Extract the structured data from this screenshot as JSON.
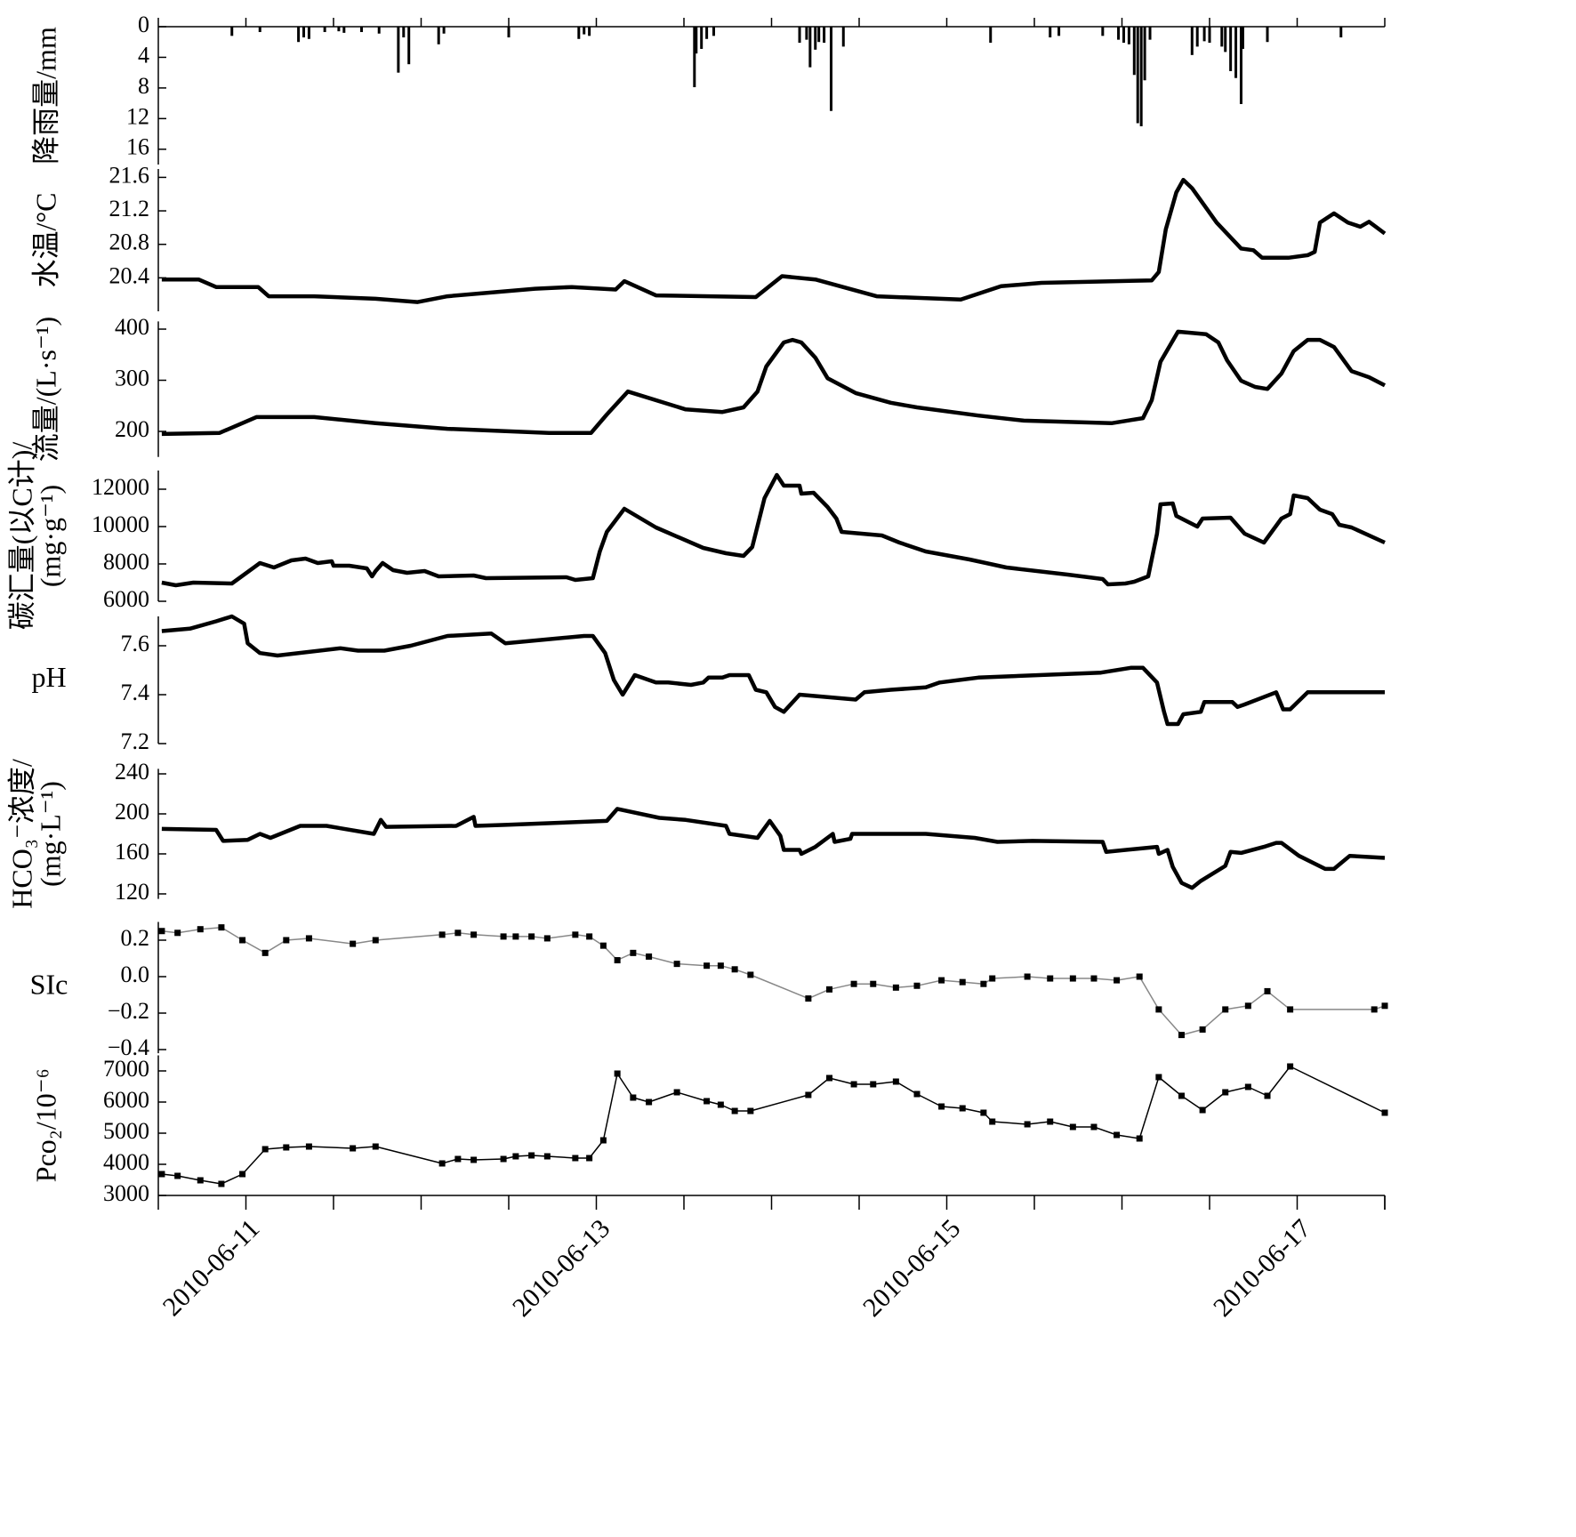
{
  "chart_data": [
    {
      "type": "bar",
      "ylabel": [
        "降雨量/mm"
      ],
      "color": "#000000",
      "y_inverted": true,
      "xlim": [
        10.5,
        17.5
      ],
      "ylim": [
        0,
        18
      ],
      "yticks": [
        0,
        4,
        8,
        12,
        16
      ],
      "x": [
        10.92,
        11.08,
        11.3,
        11.33,
        11.36,
        11.45,
        11.53,
        11.56,
        11.66,
        11.76,
        11.87,
        11.9,
        11.93,
        12.1,
        12.13,
        12.5,
        12.9,
        12.93,
        12.96,
        13.56,
        13.57,
        13.6,
        13.63,
        13.67,
        14.16,
        14.2,
        14.22,
        14.25,
        14.27,
        14.3,
        14.34,
        14.41,
        15.25,
        15.59,
        15.64,
        15.89,
        15.98,
        16.01,
        16.04,
        16.07,
        16.09,
        16.11,
        16.13,
        16.16,
        16.4,
        16.43,
        16.47,
        16.5,
        16.57,
        16.59,
        16.62,
        16.65,
        16.68,
        16.69,
        16.83,
        17.25
      ],
      "values": [
        1.2,
        0.7,
        2.0,
        1.4,
        1.6,
        0.7,
        0.6,
        0.8,
        0.7,
        0.9,
        6.0,
        1.4,
        4.9,
        2.3,
        0.9,
        1.4,
        1.6,
        1.0,
        1.2,
        7.9,
        3.5,
        2.9,
        1.6,
        1.2,
        2.1,
        1.7,
        5.3,
        3.0,
        2.0,
        2.1,
        11.0,
        2.6,
        2.1,
        1.4,
        1.2,
        1.2,
        1.7,
        2.1,
        2.3,
        6.3,
        12.6,
        13.0,
        7.0,
        1.7,
        3.7,
        2.6,
        1.9,
        2.1,
        2.6,
        3.3,
        5.8,
        6.7,
        10.1,
        2.9,
        2.0,
        1.4
      ]
    },
    {
      "type": "line",
      "ylabel": [
        "水温/°C"
      ],
      "color": "#000000",
      "xlim": [
        10.5,
        17.5
      ],
      "ylim": [
        20.0,
        21.7
      ],
      "yticks": [
        20.4,
        20.8,
        21.2,
        21.6
      ],
      "x": [
        10.52,
        10.73,
        10.83,
        11.07,
        11.13,
        11.39,
        11.74,
        11.98,
        12.15,
        12.65,
        12.86,
        13.11,
        13.16,
        13.34,
        13.91,
        14.06,
        14.25,
        14.6,
        15.08,
        15.31,
        15.54,
        16.17,
        16.21,
        16.25,
        16.31,
        16.35,
        16.4,
        16.54,
        16.68,
        16.75,
        16.8,
        16.95,
        17.06,
        17.1,
        17.13,
        17.21,
        17.29,
        17.36,
        17.41,
        17.5
      ],
      "values": [
        20.38,
        20.38,
        20.29,
        20.29,
        20.18,
        20.18,
        20.15,
        20.11,
        20.18,
        20.27,
        20.29,
        20.26,
        20.36,
        20.19,
        20.17,
        20.42,
        20.38,
        20.18,
        20.14,
        20.3,
        20.34,
        20.37,
        20.47,
        20.98,
        21.42,
        21.57,
        21.47,
        21.06,
        20.75,
        20.73,
        20.64,
        20.64,
        20.67,
        20.71,
        21.06,
        21.17,
        21.06,
        21.01,
        21.07,
        20.93
      ]
    },
    {
      "type": "line",
      "ylabel": [
        "流量/(L·s⁻¹)"
      ],
      "color": "#000000",
      "xlim": [
        10.5,
        17.5
      ],
      "ylim": [
        150,
        415
      ],
      "yticks": [
        200,
        300,
        400
      ],
      "x": [
        10.52,
        10.85,
        11.06,
        11.39,
        11.74,
        12.15,
        12.73,
        12.97,
        13.06,
        13.18,
        13.51,
        13.72,
        13.84,
        13.92,
        13.97,
        14.07,
        14.12,
        14.17,
        14.25,
        14.32,
        14.48,
        14.68,
        14.83,
        15.18,
        15.44,
        15.94,
        16.12,
        16.17,
        16.22,
        16.32,
        16.48,
        16.55,
        16.6,
        16.68,
        16.76,
        16.83,
        16.91,
        16.98,
        17.06,
        17.13,
        17.21,
        17.31,
        17.41,
        17.5
      ],
      "values": [
        195,
        197,
        228,
        228,
        216,
        205,
        197,
        197,
        233,
        278,
        243,
        238,
        247,
        278,
        327,
        374,
        379,
        374,
        344,
        304,
        275,
        256,
        247,
        231,
        221,
        216,
        226,
        261,
        336,
        395,
        390,
        374,
        339,
        299,
        287,
        283,
        313,
        357,
        379,
        379,
        365,
        318,
        306,
        290
      ]
    },
    {
      "type": "line",
      "ylabel": [
        "碳汇量(以C计)/",
        "(mg·g⁻¹)"
      ],
      "color": "#000000",
      "xlim": [
        10.5,
        17.5
      ],
      "ylim": [
        6000,
        13000
      ],
      "yticks": [
        6000,
        8000,
        10000,
        12000
      ],
      "x": [
        10.52,
        10.6,
        10.7,
        10.92,
        11.08,
        11.16,
        11.26,
        11.34,
        11.41,
        11.49,
        11.5,
        11.59,
        11.69,
        11.72,
        11.74,
        11.78,
        11.84,
        11.92,
        12.02,
        12.1,
        12.3,
        12.37,
        12.83,
        12.88,
        12.98,
        13.02,
        13.06,
        13.16,
        13.34,
        13.61,
        13.74,
        13.84,
        13.89,
        13.96,
        14.03,
        14.07,
        14.16,
        14.17,
        14.24,
        14.32,
        14.37,
        14.4,
        14.63,
        14.73,
        14.88,
        15.13,
        15.34,
        15.69,
        15.89,
        15.92,
        16.02,
        16.07,
        16.15,
        16.2,
        16.22,
        16.29,
        16.31,
        16.43,
        16.46,
        16.62,
        16.7,
        16.81,
        16.91,
        16.96,
        16.98,
        17.06,
        17.13,
        17.2,
        17.24,
        17.31,
        17.5
      ],
      "values": [
        7000,
        6857,
        7000,
        6952,
        8048,
        7810,
        8190,
        8286,
        8048,
        8143,
        7905,
        7905,
        7762,
        7333,
        7619,
        8048,
        7667,
        7524,
        7619,
        7333,
        7381,
        7238,
        7286,
        7143,
        7238,
        8667,
        9714,
        10952,
        9952,
        8857,
        8571,
        8429,
        8905,
        11524,
        12762,
        12190,
        12190,
        11762,
        11810,
        11048,
        10429,
        9714,
        9524,
        9143,
        8667,
        8238,
        7810,
        7429,
        7190,
        6905,
        6952,
        7048,
        7333,
        9619,
        11190,
        11238,
        10571,
        10000,
        10429,
        10476,
        9619,
        9143,
        10429,
        10667,
        11667,
        11524,
        10905,
        10667,
        10095,
        9952,
        9143
      ]
    },
    {
      "type": "line",
      "ylabel": [
        "pH"
      ],
      "color": "#000000",
      "xlim": [
        10.5,
        17.5
      ],
      "ylim": [
        7.2,
        7.72
      ],
      "yticks": [
        7.2,
        7.4,
        7.6
      ],
      "x": [
        10.52,
        10.68,
        10.83,
        10.92,
        10.99,
        11.01,
        11.08,
        11.18,
        11.54,
        11.64,
        11.79,
        11.94,
        12.15,
        12.4,
        12.48,
        12.93,
        12.98,
        13.05,
        13.1,
        13.15,
        13.22,
        13.26,
        13.34,
        13.41,
        13.54,
        13.61,
        13.64,
        13.72,
        13.76,
        13.87,
        13.91,
        13.97,
        14.02,
        14.07,
        14.16,
        14.48,
        14.53,
        14.68,
        14.88,
        14.96,
        15.18,
        15.88,
        16.05,
        16.12,
        16.2,
        16.24,
        16.26,
        16.32,
        16.35,
        16.45,
        16.47,
        16.63,
        16.66,
        16.7,
        16.88,
        16.92,
        16.96,
        17.06,
        17.5
      ],
      "values": [
        7.66,
        7.67,
        7.7,
        7.72,
        7.69,
        7.61,
        7.57,
        7.56,
        7.59,
        7.58,
        7.58,
        7.6,
        7.64,
        7.65,
        7.61,
        7.64,
        7.64,
        7.57,
        7.46,
        7.4,
        7.48,
        7.47,
        7.45,
        7.45,
        7.44,
        7.45,
        7.47,
        7.47,
        7.48,
        7.48,
        7.42,
        7.41,
        7.35,
        7.33,
        7.4,
        7.38,
        7.41,
        7.42,
        7.43,
        7.45,
        7.47,
        7.49,
        7.51,
        7.51,
        7.45,
        7.33,
        7.28,
        7.28,
        7.32,
        7.33,
        7.37,
        7.37,
        7.35,
        7.36,
        7.41,
        7.34,
        7.34,
        7.41,
        7.41
      ]
    },
    {
      "type": "line",
      "ylabel": [
        "HCO₃⁻浓度/",
        "(mg·L⁻¹)"
      ],
      "color": "#000000",
      "xlim": [
        10.5,
        17.5
      ],
      "ylim": [
        115,
        245
      ],
      "yticks": [
        120,
        160,
        200,
        240
      ],
      "x": [
        10.52,
        10.83,
        10.87,
        11.01,
        11.08,
        11.14,
        11.31,
        11.46,
        11.73,
        11.77,
        11.8,
        12.2,
        12.3,
        12.31,
        12.48,
        13.06,
        13.12,
        13.36,
        13.51,
        13.74,
        13.76,
        13.92,
        13.99,
        14.05,
        14.07,
        14.16,
        14.17,
        14.25,
        14.35,
        14.36,
        14.45,
        14.46,
        14.68,
        14.88,
        15.16,
        15.29,
        15.49,
        15.89,
        15.91,
        16.2,
        16.21,
        16.26,
        16.29,
        16.34,
        16.4,
        16.45,
        16.59,
        16.62,
        16.68,
        16.81,
        16.88,
        16.91,
        17.01,
        17.16,
        17.21,
        17.3,
        17.5
      ],
      "values": [
        185,
        184,
        173,
        174,
        180,
        176,
        188,
        188,
        180,
        194,
        187,
        188,
        197,
        188,
        189,
        193,
        205,
        196,
        194,
        188,
        180,
        176,
        193,
        178,
        164,
        164,
        160,
        167,
        180,
        172,
        175,
        180,
        180,
        180,
        176,
        172,
        173,
        172,
        162,
        167,
        160,
        164,
        147,
        131,
        126,
        133,
        148,
        162,
        161,
        167,
        171,
        171,
        158,
        145,
        145,
        158,
        156
      ]
    },
    {
      "type": "line",
      "ylabel": [
        "SIc"
      ],
      "color": "#888888",
      "marker": "square",
      "marker_color": "#000000",
      "xlim": [
        10.5,
        17.5
      ],
      "ylim": [
        -0.42,
        0.3
      ],
      "yticks": [
        {
          "value": -0.4,
          "label": "−0.4"
        },
        {
          "value": -0.2,
          "label": "−0.2"
        },
        {
          "value": 0,
          "label": "0.0"
        },
        0.2
      ],
      "x": [
        10.52,
        10.61,
        10.74,
        10.86,
        10.98,
        11.11,
        11.23,
        11.36,
        11.61,
        11.74,
        12.12,
        12.21,
        12.3,
        12.47,
        12.54,
        12.63,
        12.72,
        12.88,
        12.96,
        13.04,
        13.12,
        13.21,
        13.3,
        13.46,
        13.63,
        13.71,
        13.79,
        13.88,
        14.21,
        14.33,
        14.47,
        14.58,
        14.71,
        14.83,
        14.97,
        15.09,
        15.21,
        15.26,
        15.46,
        15.59,
        15.72,
        15.84,
        15.97,
        16.1,
        16.21,
        16.34,
        16.46,
        16.59,
        16.72,
        16.83,
        16.96,
        17.44,
        17.5
      ],
      "values": [
        0.25,
        0.24,
        0.26,
        0.27,
        0.2,
        0.13,
        0.2,
        0.21,
        0.18,
        0.2,
        0.23,
        0.24,
        0.23,
        0.22,
        0.22,
        0.22,
        0.21,
        0.23,
        0.22,
        0.17,
        0.09,
        0.13,
        0.11,
        0.07,
        0.06,
        0.06,
        0.04,
        0.01,
        -0.12,
        -0.07,
        -0.04,
        -0.04,
        -0.06,
        -0.05,
        -0.02,
        -0.03,
        -0.04,
        -0.01,
        0.0,
        -0.01,
        -0.01,
        -0.01,
        -0.02,
        0.0,
        -0.18,
        -0.32,
        -0.29,
        -0.18,
        -0.16,
        -0.08,
        -0.18,
        -0.18,
        -0.16
      ]
    },
    {
      "type": "line",
      "ylabel": [
        "Pco₂/10⁻⁶"
      ],
      "color": "#000000",
      "marker": "square",
      "marker_color": "#000000",
      "xlim": [
        10.5,
        17.5
      ],
      "ylim": [
        3000,
        7500
      ],
      "yticks": [
        3000,
        4000,
        5000,
        6000,
        7000
      ],
      "xticks": [
        {
          "value": 11,
          "label": "2010-06-11"
        },
        {
          "value": 13,
          "label": "2010-06-13"
        },
        {
          "value": 15,
          "label": "2010-06-15"
        },
        {
          "value": 17,
          "label": "2010-06-17"
        }
      ],
      "xminorticks": [
        10.5,
        11.5,
        12,
        12.5,
        13.5,
        14,
        14.5,
        15.5,
        16,
        16.5,
        17.5
      ],
      "x": [
        10.52,
        10.61,
        10.74,
        10.86,
        10.98,
        11.11,
        11.23,
        11.36,
        11.61,
        11.74,
        12.12,
        12.21,
        12.3,
        12.47,
        12.54,
        12.63,
        12.72,
        12.88,
        12.96,
        13.04,
        13.12,
        13.21,
        13.3,
        13.46,
        13.63,
        13.71,
        13.79,
        13.88,
        14.21,
        14.33,
        14.47,
        14.58,
        14.71,
        14.83,
        14.97,
        15.09,
        15.21,
        15.26,
        15.46,
        15.59,
        15.72,
        15.84,
        15.97,
        16.1,
        16.21,
        16.34,
        16.46,
        16.59,
        16.72,
        16.83,
        16.96,
        17.5
      ],
      "values": [
        3686,
        3629,
        3486,
        3371,
        3686,
        4486,
        4543,
        4571,
        4514,
        4571,
        4029,
        4171,
        4143,
        4171,
        4257,
        4286,
        4257,
        4200,
        4200,
        4771,
        6914,
        6143,
        6000,
        6314,
        6029,
        5914,
        5714,
        5714,
        6229,
        6771,
        6571,
        6571,
        6657,
        6257,
        5857,
        5800,
        5657,
        5371,
        5286,
        5371,
        5200,
        5200,
        4943,
        4829,
        6800,
        6200,
        5743,
        6314,
        6486,
        6200,
        7143,
        5657
      ]
    }
  ]
}
